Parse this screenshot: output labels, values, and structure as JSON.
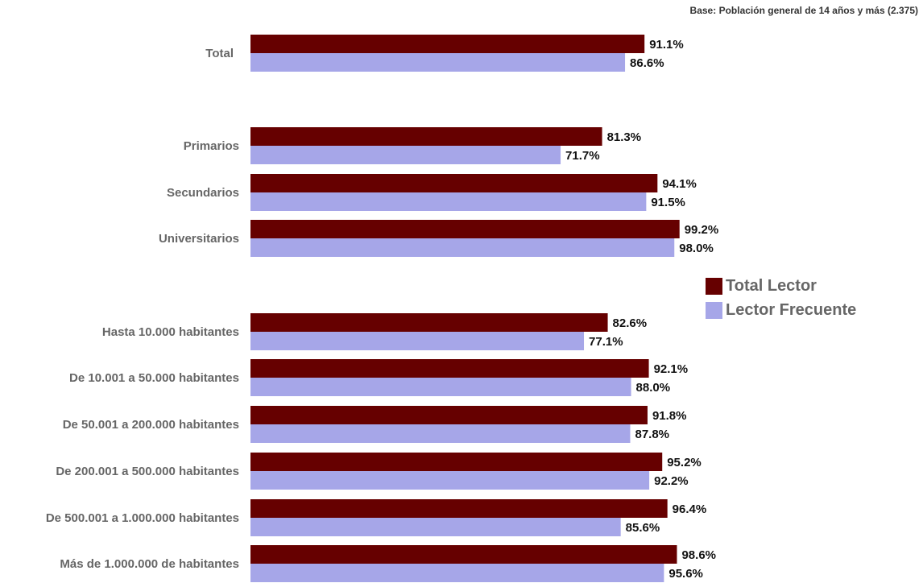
{
  "note": "Base: Población general de 14 años y más (2.375)",
  "chart_data": {
    "type": "bar",
    "orientation": "horizontal",
    "categories": [
      "Total",
      "Primarios",
      "Secundarios",
      "Universitarios",
      "Hasta 10.000 habitantes",
      "De 10.001 a 50.000 habitantes",
      "De 50.001 a 200.000 habitantes",
      "De 200.001 a 500.000 habitantes",
      "De 500.001 a 1.000.000 habitantes",
      "Más de 1.000.000 de habitantes"
    ],
    "series": [
      {
        "name": "Total Lector",
        "color": "#660000",
        "values": [
          91.1,
          81.3,
          94.1,
          99.2,
          82.6,
          92.1,
          91.8,
          95.2,
          96.4,
          98.6
        ],
        "labels": [
          "91.1%",
          "81.3%",
          "94.1%",
          "99.2%",
          "82.6%",
          "92.1%",
          "91.8%",
          "95.2%",
          "96.4%",
          "98.6%"
        ]
      },
      {
        "name": "Lector Frecuente",
        "color": "#a6a6e8",
        "values": [
          86.6,
          71.7,
          91.5,
          98.0,
          77.1,
          88.0,
          87.8,
          92.2,
          85.6,
          95.6
        ],
        "labels": [
          "86.6%",
          "71.7%",
          "91.5%",
          "98.0%",
          "77.1%",
          "88.0%",
          "87.8%",
          "92.2%",
          "85.6%",
          "95.6%"
        ]
      }
    ],
    "xlim": [
      0,
      100
    ],
    "grid": false,
    "legend_position": "right"
  }
}
